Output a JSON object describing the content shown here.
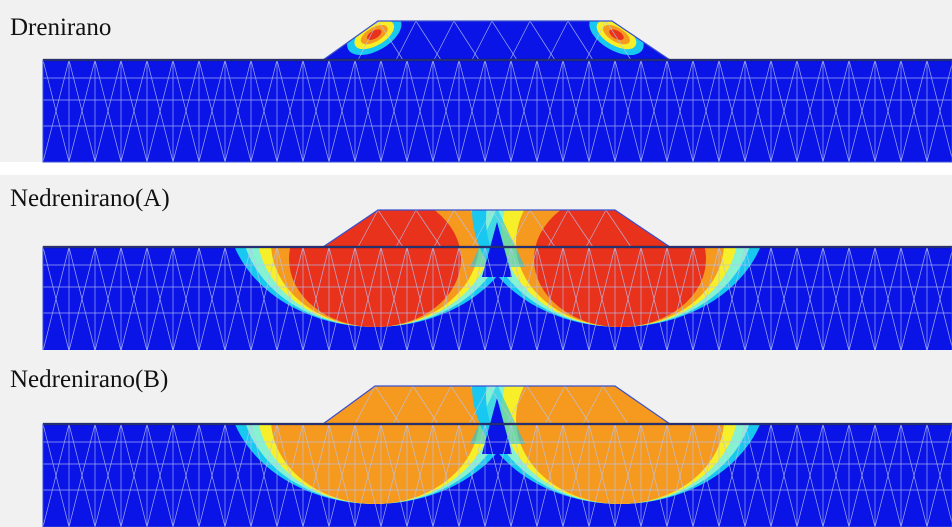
{
  "panels": [
    {
      "label": "Drenirano",
      "state": "drained"
    },
    {
      "label": "Nedrenirano(A)",
      "state": "undrained-a"
    },
    {
      "label": "Nedrenirano(B)",
      "state": "undrained-b"
    }
  ],
  "colors": {
    "background": "#f1f1f1",
    "low": "#0a14e6",
    "cyan": "#18c8f0",
    "aqua": "#86f2d2",
    "yellow": "#f7ef2a",
    "orange": "#f59a1e",
    "red": "#e8321c",
    "mesh": "#b9c3f2",
    "surface": "#111111"
  }
}
